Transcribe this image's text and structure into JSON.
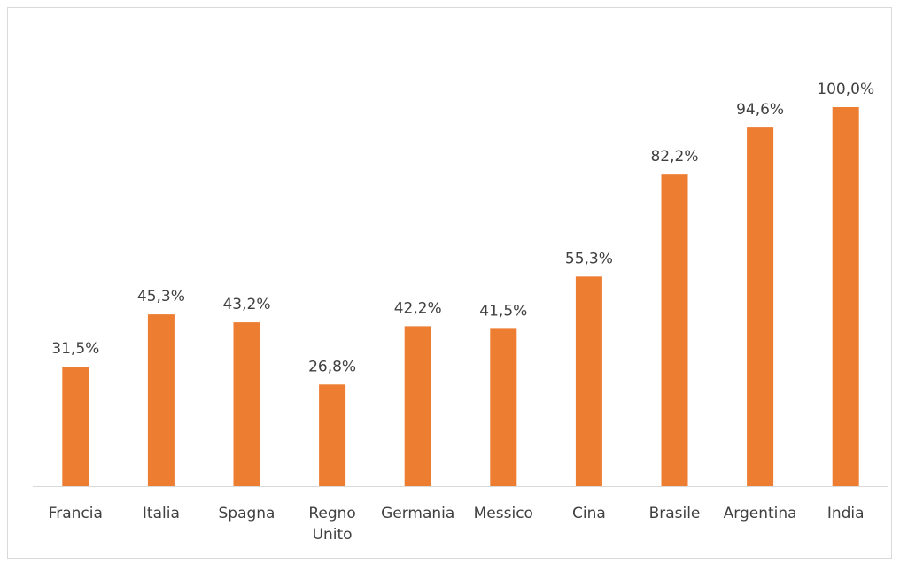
{
  "chart_data": {
    "type": "bar",
    "categories": [
      "Francia",
      "Italia",
      "Spagna",
      "Regno Unito",
      "Germania",
      "Messico",
      "Cina",
      "Brasile",
      "Argentina",
      "India"
    ],
    "values": [
      31.5,
      45.3,
      43.2,
      26.8,
      42.2,
      41.5,
      55.3,
      82.2,
      94.6,
      100.0
    ],
    "value_labels": [
      "31,5%",
      "45,3%",
      "43,2%",
      "26,8%",
      "42,2%",
      "41,5%",
      "55,3%",
      "82,2%",
      "94,6%",
      "100,0%"
    ],
    "color": "#ed7d31"
  }
}
